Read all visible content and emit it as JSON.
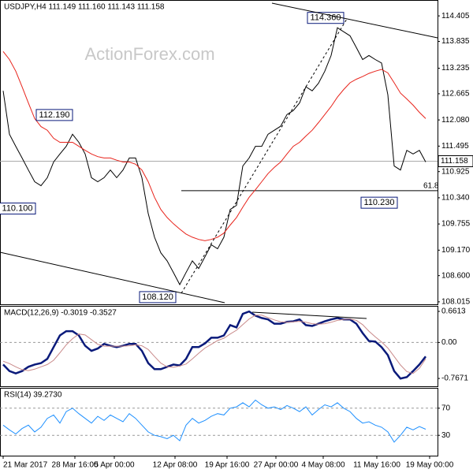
{
  "watermark": "ActionForex.com",
  "chart_data": [
    {
      "type": "line",
      "title": "USDJPY,H4  111.149 111.160 111.143 111.158",
      "ylim": [
        107.96,
        114.76
      ],
      "yticks": [
        114.405,
        113.835,
        113.235,
        112.665,
        {
          "value": 112.08,
          "label": "112.080"
        },
        111.495,
        110.925,
        {
          "value": 110.34,
          "label": "110.340"
        },
        109.755,
        {
          "value": 109.17,
          "label": "109.170"
        },
        {
          "value": 108.6,
          "label": "108.600"
        },
        108.015
      ],
      "last_price": 111.158,
      "series": [
        {
          "color": "#000000",
          "values": [
            112.73,
            111.76,
            111.49,
            111.23,
            110.96,
            110.7,
            110.61,
            110.79,
            111.14,
            111.32,
            111.49,
            111.76,
            111.58,
            111.32,
            110.79,
            110.7,
            110.79,
            110.96,
            110.79,
            110.96,
            111.23,
            111.23,
            110.79,
            109.99,
            109.46,
            109.11,
            108.93,
            108.67,
            108.4,
            108.67,
            108.93,
            108.76,
            109.02,
            109.29,
            109.2,
            109.46,
            110.08,
            110.17,
            111.05,
            111.23,
            111.49,
            111.49,
            111.76,
            111.85,
            111.94,
            112.2,
            112.29,
            112.46,
            112.82,
            112.73,
            112.9,
            113.17,
            113.52,
            114.14,
            114.05,
            113.96,
            113.7,
            113.43,
            113.52,
            113.43,
            113.35,
            112.64,
            111.05,
            110.96,
            111.4,
            111.32,
            111.4,
            111.14
          ]
        },
        {
          "color": "#e8231b",
          "values": [
            113.61,
            113.43,
            113.17,
            112.82,
            112.46,
            112.11,
            111.93,
            111.85,
            111.67,
            111.58,
            111.58,
            111.58,
            111.49,
            111.4,
            111.32,
            111.26,
            111.23,
            111.23,
            111.18,
            111.14,
            111.14,
            111.09,
            110.96,
            110.7,
            110.35,
            110.08,
            109.9,
            109.76,
            109.64,
            109.53,
            109.46,
            109.41,
            109.38,
            109.41,
            109.46,
            109.55,
            109.73,
            109.9,
            110.13,
            110.35,
            110.52,
            110.7,
            110.88,
            111.02,
            111.14,
            111.32,
            111.49,
            111.58,
            111.72,
            111.85,
            112.02,
            112.2,
            112.38,
            112.59,
            112.76,
            112.91,
            112.99,
            113.05,
            113.12,
            113.17,
            113.21,
            113.13,
            112.91,
            112.68,
            112.55,
            112.41,
            112.25,
            112.11
          ]
        }
      ],
      "level": {
        "value": 110.5,
        "label": "61.8"
      },
      "annotations": [
        {
          "value": 114.36,
          "label": "114.360"
        },
        {
          "value": 112.19,
          "label": "112.190"
        },
        {
          "value": 110.1,
          "label": "110.100"
        },
        {
          "value": 108.12,
          "label": "108.120"
        },
        {
          "value": 110.23,
          "label": "110.230"
        }
      ]
    },
    {
      "type": "line",
      "title": "MACD(12,26,9) -0.3019 -0.3527",
      "ylim": [
        -0.934,
        0.779
      ],
      "yticks": [
        0.6613,
        {
          "value": 0,
          "label": "0.00"
        },
        -0.7671
      ],
      "grid_at": [
        1
      ],
      "series": [
        {
          "color": "#0a1a7a",
          "values": [
            -0.47,
            -0.61,
            -0.66,
            -0.61,
            -0.52,
            -0.47,
            -0.44,
            -0.35,
            -0.1,
            0.15,
            0.24,
            0.24,
            0.15,
            -0.07,
            -0.18,
            -0.13,
            -0.03,
            -0.07,
            -0.1,
            -0.07,
            -0.03,
            -0.03,
            -0.18,
            -0.44,
            -0.57,
            -0.57,
            -0.52,
            -0.47,
            -0.49,
            -0.35,
            -0.1,
            -0.1,
            -0.02,
            0.1,
            0.1,
            0.15,
            0.37,
            0.32,
            0.61,
            0.66,
            0.57,
            0.52,
            0.49,
            0.4,
            0.4,
            0.44,
            0.45,
            0.49,
            0.37,
            0.35,
            0.4,
            0.45,
            0.49,
            0.52,
            0.49,
            0.49,
            0.4,
            0.2,
            0.03,
            0.02,
            -0.1,
            -0.27,
            -0.61,
            -0.77,
            -0.74,
            -0.61,
            -0.47,
            -0.3
          ]
        },
        {
          "color": "#c98a8a",
          "values": [
            -0.4,
            -0.45,
            -0.52,
            -0.58,
            -0.6,
            -0.57,
            -0.52,
            -0.47,
            -0.38,
            -0.22,
            -0.05,
            0.08,
            0.18,
            0.16,
            0.06,
            -0.04,
            -0.08,
            -0.08,
            -0.08,
            -0.08,
            -0.07,
            -0.05,
            -0.07,
            -0.15,
            -0.3,
            -0.44,
            -0.52,
            -0.53,
            -0.5,
            -0.46,
            -0.35,
            -0.23,
            -0.12,
            -0.04,
            0.04,
            0.09,
            0.18,
            0.26,
            0.38,
            0.5,
            0.58,
            0.58,
            0.53,
            0.48,
            0.44,
            0.43,
            0.44,
            0.45,
            0.43,
            0.4,
            0.39,
            0.4,
            0.43,
            0.47,
            0.49,
            0.5,
            0.47,
            0.38,
            0.24,
            0.12,
            0.01,
            -0.12,
            -0.3,
            -0.48,
            -0.62,
            -0.66,
            -0.55,
            -0.35
          ]
        }
      ]
    },
    {
      "type": "line",
      "title": "RSI(14) 39.2730",
      "ylim": [
        0,
        100
      ],
      "yticks": [
        70,
        30
      ],
      "grid_at": [
        0,
        1
      ],
      "series": [
        {
          "color": "#1e90ff",
          "values": [
            45,
            38,
            32,
            40,
            45,
            35,
            42,
            55,
            60,
            48,
            65,
            70,
            62,
            55,
            48,
            58,
            52,
            60,
            55,
            50,
            62,
            55,
            45,
            35,
            30,
            28,
            25,
            30,
            22,
            45,
            55,
            48,
            52,
            58,
            62,
            60,
            70,
            72,
            78,
            72,
            82,
            75,
            70,
            72,
            68,
            74,
            70,
            65,
            72,
            60,
            68,
            75,
            72,
            78,
            70,
            65,
            55,
            48,
            50,
            45,
            42,
            35,
            20,
            30,
            42,
            38,
            43,
            39
          ]
        }
      ],
      "xlim": [
        -0.5,
        68.875
      ],
      "xticks": [
        {
          "value": 0,
          "label": "21 Mar 2017"
        },
        {
          "value": 11.375,
          "label": "28 Mar 16:00"
        },
        {
          "value": 17.625,
          "label": "5 Apr 00:00"
        },
        {
          "value": 27.25,
          "label": "12 Apr 08:00"
        },
        {
          "value": 35.5,
          "label": "19 Apr 16:00"
        },
        {
          "value": 43.25,
          "label": "27 Apr 00:00"
        },
        {
          "value": 50.75,
          "label": "4 May 08:00"
        },
        {
          "value": 59.25,
          "label": "11 May 16:00"
        },
        {
          "value": 67.625,
          "label": "19 May 00:00"
        }
      ]
    }
  ]
}
